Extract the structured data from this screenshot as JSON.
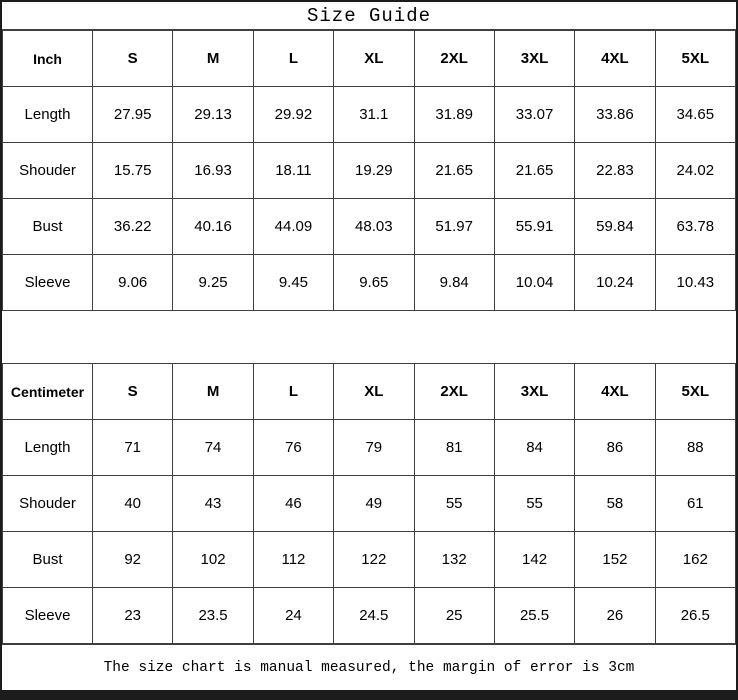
{
  "title": "Size Guide",
  "footer_note": "The size chart is manual measured, the margin of error is 3cm",
  "colors": {
    "background": "#ffffff",
    "text": "#000000",
    "grid_border": "#3f3f3f",
    "outer_border": "#1c1c1c",
    "bottom_bar": "#1c1c1c"
  },
  "chart_data": {
    "type": "table",
    "title": "Size Guide",
    "size_columns": [
      "S",
      "M",
      "L",
      "XL",
      "2XL",
      "3XL",
      "4XL",
      "5XL"
    ],
    "tables": [
      {
        "unit_label": "Inch",
        "rows": [
          {
            "label": "Length",
            "values": [
              "27.95",
              "29.13",
              "29.92",
              "31.1",
              "31.89",
              "33.07",
              "33.86",
              "34.65"
            ]
          },
          {
            "label": "Shouder",
            "values": [
              "15.75",
              "16.93",
              "18.11",
              "19.29",
              "21.65",
              "21.65",
              "22.83",
              "24.02"
            ]
          },
          {
            "label": "Bust",
            "values": [
              "36.22",
              "40.16",
              "44.09",
              "48.03",
              "51.97",
              "55.91",
              "59.84",
              "63.78"
            ]
          },
          {
            "label": "Sleeve",
            "values": [
              "9.06",
              "9.25",
              "9.45",
              "9.65",
              "9.84",
              "10.04",
              "10.24",
              "10.43"
            ]
          }
        ]
      },
      {
        "unit_label": "Centimeter",
        "rows": [
          {
            "label": "Length",
            "values": [
              "71",
              "74",
              "76",
              "79",
              "81",
              "84",
              "86",
              "88"
            ]
          },
          {
            "label": "Shouder",
            "values": [
              "40",
              "43",
              "46",
              "49",
              "55",
              "55",
              "58",
              "61"
            ]
          },
          {
            "label": "Bust",
            "values": [
              "92",
              "102",
              "112",
              "122",
              "132",
              "142",
              "152",
              "162"
            ]
          },
          {
            "label": "Sleeve",
            "values": [
              "23",
              "23.5",
              "24",
              "24.5",
              "25",
              "25.5",
              "26",
              "26.5"
            ]
          }
        ]
      }
    ],
    "annotations": [
      "The size chart is manual measured, the margin of error is 3cm"
    ]
  }
}
